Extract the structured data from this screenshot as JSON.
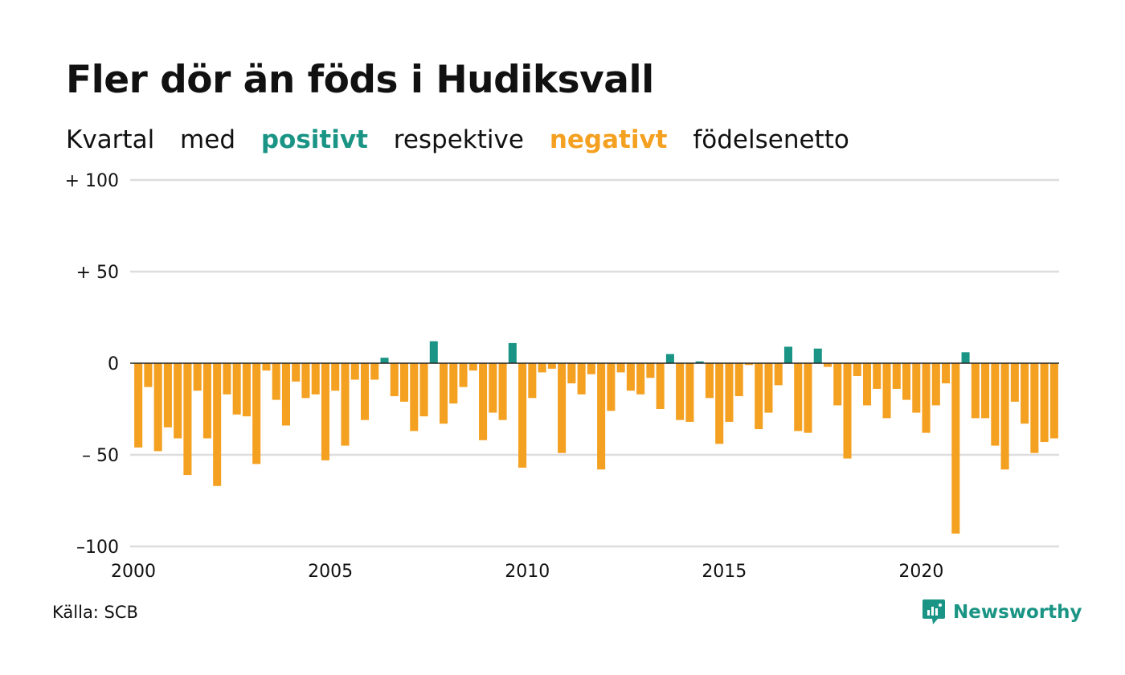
{
  "title": "Fler dör än föds i Hudiksvall",
  "subtitle": {
    "w1": "Kvartal",
    "w2": "med",
    "positive": "positivt",
    "w3": "respektive",
    "negative": "negativt",
    "w4": "födelsenetto"
  },
  "source": "Källa: SCB",
  "brand": "Newsworthy",
  "colors": {
    "positive": "#1a9484",
    "negative": "#f4a020",
    "grid": "#dddddd",
    "zero": "#222222"
  },
  "chart_data": {
    "type": "bar",
    "ylim": [
      -100,
      100
    ],
    "y_ticks": [
      {
        "value": 100,
        "label": "+ 100"
      },
      {
        "value": 50,
        "label": "+  50"
      },
      {
        "value": 0,
        "label": "0"
      },
      {
        "value": -50,
        "label": "– 50"
      },
      {
        "value": -100,
        "label": "–100"
      }
    ],
    "x_ticks": [
      "2000",
      "2005",
      "2010",
      "2015",
      "2020"
    ],
    "x_start": "2000",
    "values": [
      -46,
      -13,
      -48,
      -35,
      -41,
      -61,
      -15,
      -41,
      -67,
      -17,
      -28,
      -29,
      -55,
      -4,
      -20,
      -34,
      -10,
      -19,
      -17,
      -53,
      -15,
      -45,
      -9,
      -31,
      -9,
      3,
      -18,
      -21,
      -37,
      -29,
      12,
      -33,
      -22,
      -13,
      -4,
      -42,
      -27,
      -31,
      11,
      -57,
      -19,
      -5,
      -3,
      -49,
      -11,
      -17,
      -6,
      -58,
      -26,
      -5,
      -15,
      -17,
      -8,
      -25,
      5,
      -31,
      -32,
      1,
      -19,
      -44,
      -32,
      -18,
      -1,
      -36,
      -27,
      -12,
      9,
      -37,
      -38,
      8,
      -2,
      -23,
      -52,
      -7,
      -23,
      -14,
      -30,
      -14,
      -20,
      -27,
      -38,
      -23,
      -11,
      -93,
      6,
      -30,
      -30,
      -45,
      -58,
      -21,
      -33,
      -49,
      -43,
      -41
    ]
  }
}
